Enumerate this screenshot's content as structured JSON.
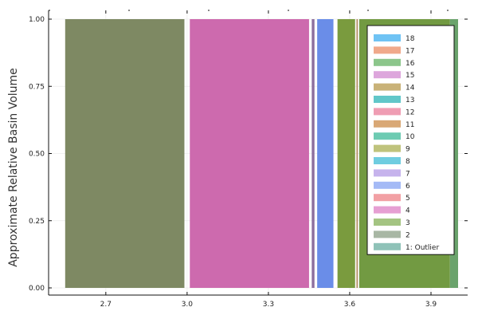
{
  "chart_data": {
    "type": "area",
    "title": "",
    "xlabel": "",
    "ylabel": "Approximate Relative Basin Volume",
    "xlim": [
      2.53,
      4.0
    ],
    "ylim": [
      0.0,
      1.0
    ],
    "x_ticks": [
      {
        "value": 2.7,
        "label": "2.7"
      },
      {
        "value": 3.0,
        "label": "3.0"
      },
      {
        "value": 3.3,
        "label": "3.3"
      },
      {
        "value": 3.6,
        "label": "3.6"
      },
      {
        "value": 3.9,
        "label": "3.9"
      }
    ],
    "y_ticks": [
      {
        "value": 0.0,
        "label": "0.00"
      },
      {
        "value": 0.25,
        "label": "0.25"
      },
      {
        "value": 0.5,
        "label": "0.50"
      },
      {
        "value": 0.75,
        "label": "0.75"
      },
      {
        "value": 1.0,
        "label": "1.00"
      }
    ],
    "grid": true,
    "legend_position": "top-right",
    "series": [
      {
        "name": "18",
        "color": "#6fc3f4"
      },
      {
        "name": "17",
        "color": "#f0a98b"
      },
      {
        "name": "16",
        "color": "#8cc68b"
      },
      {
        "name": "15",
        "color": "#dda6dc"
      },
      {
        "name": "14",
        "color": "#c9b278"
      },
      {
        "name": "13",
        "color": "#61c7c9"
      },
      {
        "name": "12",
        "color": "#ef9db3"
      },
      {
        "name": "11",
        "color": "#d9a876"
      },
      {
        "name": "10",
        "color": "#6dcbb2"
      },
      {
        "name": "9",
        "color": "#bfc37c"
      },
      {
        "name": "8",
        "color": "#6fcde0"
      },
      {
        "name": "7",
        "color": "#c6b3ec"
      },
      {
        "name": "6",
        "color": "#a4baf6"
      },
      {
        "name": "5",
        "color": "#f2a0a4"
      },
      {
        "name": "4",
        "color": "#e69fd3"
      },
      {
        "name": "3",
        "color": "#a4c482"
      },
      {
        "name": "2",
        "color": "#a8b7a4"
      },
      {
        "name": "1: Outlier",
        "color": "#8fc2b8"
      }
    ],
    "regions": [
      {
        "x0": 2.55,
        "x1": 2.99,
        "color": "#7e8963"
      },
      {
        "x0": 3.01,
        "x1": 3.45,
        "color": "#cd6aae"
      },
      {
        "x0": 3.46,
        "x1": 3.47,
        "color": "#8d6f9e"
      },
      {
        "x0": 3.48,
        "x1": 3.54,
        "color": "#6a8de8"
      },
      {
        "x0": 3.555,
        "x1": 3.62,
        "color": "#7a9b3e"
      },
      {
        "x0": 3.625,
        "x1": 3.63,
        "color": "#b08a5e"
      },
      {
        "x0": 3.635,
        "x1": 3.97,
        "color": "#729a42"
      },
      {
        "x0": 3.97,
        "x1": 4.0,
        "color": "#6aa36c"
      }
    ]
  }
}
